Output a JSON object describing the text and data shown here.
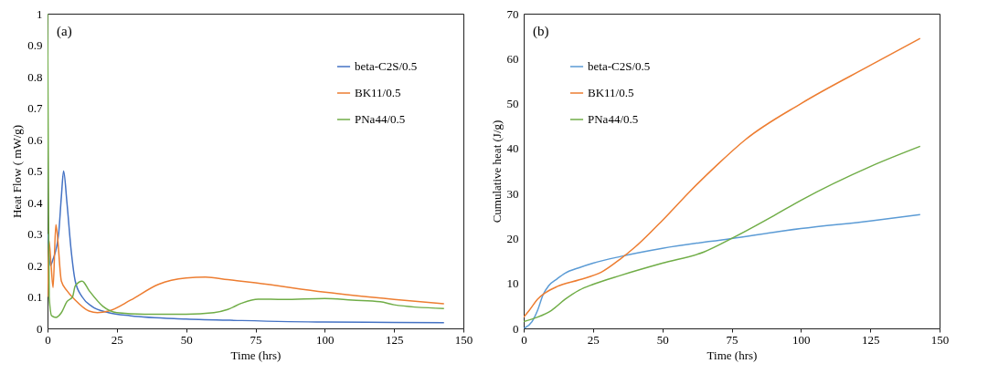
{
  "chart_data": [
    {
      "type": "line",
      "xlabel": "Time (hrs)",
      "ylabel": "Heat Flow ( mW/g)",
      "xlim": [
        0,
        150
      ],
      "xticks": [
        0,
        25,
        50,
        75,
        100,
        125,
        150
      ],
      "ylim": [
        0,
        1
      ],
      "yticks": [
        0,
        0.1,
        0.2,
        0.3,
        0.4,
        0.5,
        0.6,
        0.7,
        0.8,
        0.9,
        1
      ],
      "legend": "top right",
      "annotations": [
        "(a)"
      ],
      "series": [
        {
          "name": "beta-C2S/0.5",
          "color": "#4472c4",
          "x": [
            0.2,
            1,
            2,
            4,
            5,
            5.8,
            7,
            8.5,
            10,
            12.5,
            16,
            22,
            30,
            50,
            70,
            100,
            125,
            143
          ],
          "values": [
            0.3,
            0.2,
            0.22,
            0.3,
            0.42,
            0.5,
            0.4,
            0.25,
            0.15,
            0.1,
            0.07,
            0.05,
            0.04,
            0.03,
            0.025,
            0.02,
            0.019,
            0.018
          ]
        },
        {
          "name": "BK11/0.5",
          "color": "#ed7d31",
          "x": [
            0,
            0.5,
            1.3,
            2,
            3,
            3.5,
            5,
            7,
            10,
            15,
            18,
            22,
            30,
            40,
            50,
            57,
            65,
            75,
            100,
            125,
            143
          ],
          "values": [
            0.1,
            0.28,
            0.2,
            0.13,
            0.33,
            0.3,
            0.15,
            0.12,
            0.09,
            0.055,
            0.05,
            0.055,
            0.09,
            0.14,
            0.16,
            0.163,
            0.155,
            0.145,
            0.115,
            0.092,
            0.078
          ]
        },
        {
          "name": "PNa44/0.5",
          "color": "#70ad47",
          "x": [
            0,
            0.3,
            0.6,
            1.5,
            3,
            5,
            7,
            9,
            10,
            12.5,
            15,
            20,
            25,
            35,
            50,
            60,
            65,
            70,
            76,
            85,
            100,
            110,
            120,
            125,
            143
          ],
          "values": [
            1,
            0.5,
            0.1,
            0.04,
            0.035,
            0.05,
            0.085,
            0.1,
            0.135,
            0.15,
            0.12,
            0.07,
            0.05,
            0.045,
            0.045,
            0.05,
            0.06,
            0.08,
            0.093,
            0.092,
            0.095,
            0.09,
            0.085,
            0.075,
            0.063
          ]
        }
      ]
    },
    {
      "type": "line",
      "xlabel": "Time (hrs)",
      "ylabel": "Cumulative heat (J/g)",
      "xlim": [
        0,
        150
      ],
      "xticks": [
        0,
        25,
        50,
        75,
        100,
        125,
        150
      ],
      "ylim": [
        0,
        70
      ],
      "yticks": [
        0,
        10,
        20,
        30,
        40,
        50,
        60,
        70
      ],
      "legend": "top left",
      "annotations": [
        "(b)"
      ],
      "series": [
        {
          "name": "beta-C2S/0.5",
          "color": "#5b9bd5",
          "x": [
            0,
            3,
            5,
            7,
            9,
            12,
            15,
            20,
            25,
            35,
            50,
            75,
            100,
            125,
            143
          ],
          "values": [
            0,
            1.5,
            4,
            7.5,
            9.5,
            11,
            12.3,
            13.5,
            14.5,
            16,
            17.8,
            20,
            22.2,
            23.9,
            25.3
          ]
        },
        {
          "name": "BK11/0.5",
          "color": "#ed7d31",
          "x": [
            0,
            2,
            5,
            8,
            12,
            20,
            28,
            35,
            40,
            50,
            60,
            70,
            80,
            100,
            125,
            143
          ],
          "values": [
            2.5,
            4,
            6.5,
            8,
            9.3,
            10.8,
            12.5,
            15.5,
            18,
            24,
            30.5,
            36.5,
            42,
            50,
            58.5,
            64.5
          ]
        },
        {
          "name": "PNa44/0.5",
          "color": "#70ad47",
          "x": [
            0,
            5,
            10,
            15,
            20,
            25,
            35,
            50,
            65,
            75,
            90,
            100,
            125,
            143
          ],
          "values": [
            1.5,
            2.5,
            4,
            6.5,
            8.5,
            9.8,
            11.8,
            14.5,
            17,
            20,
            25,
            28.5,
            36,
            40.5
          ]
        }
      ]
    }
  ]
}
